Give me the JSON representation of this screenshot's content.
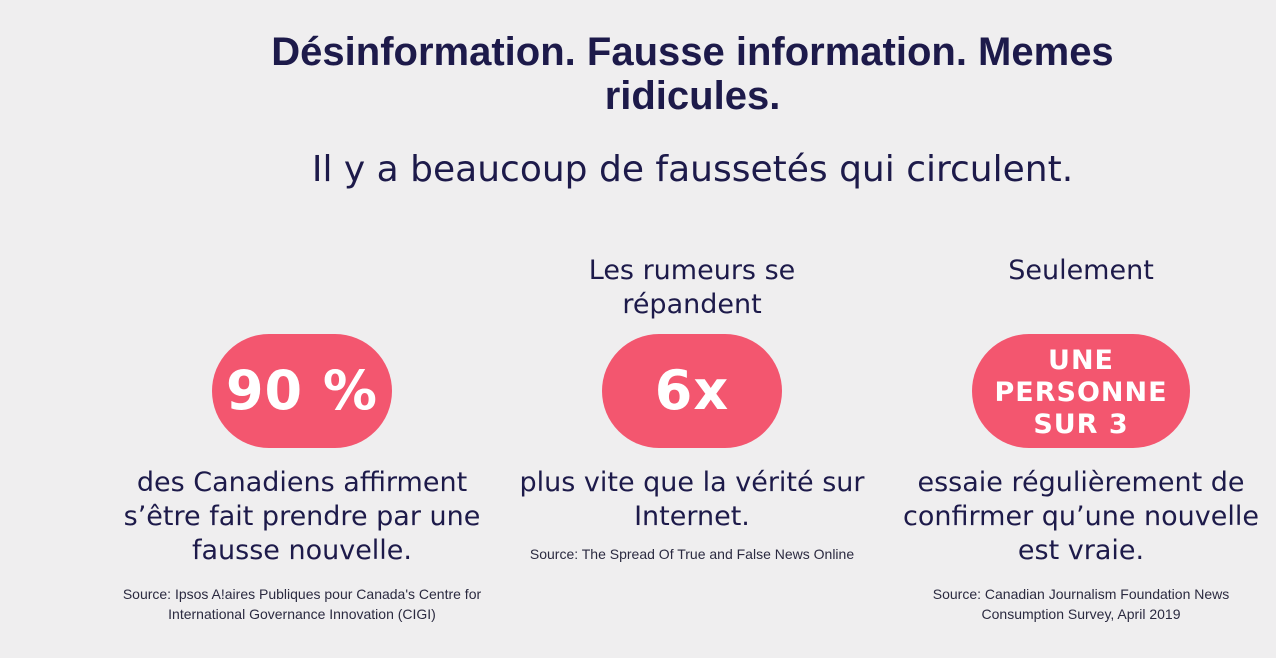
{
  "header": {
    "title": "Désinformation. Fausse information. Memes ridicules.",
    "subtitle": "Il y a beaucoup de faussetés qui circulent."
  },
  "stats": [
    {
      "pre": "",
      "badge": "90 %",
      "description": "des Canadiens affirment s’être fait prendre par une fausse nouvelle.",
      "source": "Source: Ipsos A!aires Publiques pour Canada's Centre for International Governance Innovation (CIGI)"
    },
    {
      "pre": "Les rumeurs se répandent",
      "badge": "6x",
      "description": "plus vite que la vérité sur Internet.",
      "source": "Source: The Spread Of True and False News Online"
    },
    {
      "pre": "Seulement",
      "badge_lines": [
        "UNE",
        "PERSONNE",
        "SUR 3"
      ],
      "description": "essaie régulièrement de confirmer qu’une nouvelle est vraie.",
      "source": "Source: Canadian Journalism Foundation News Consumption Survey, April 2019"
    }
  ],
  "colors": {
    "background": "#efeeef",
    "text": "#1d1a4a",
    "accent": "#f3566f"
  }
}
